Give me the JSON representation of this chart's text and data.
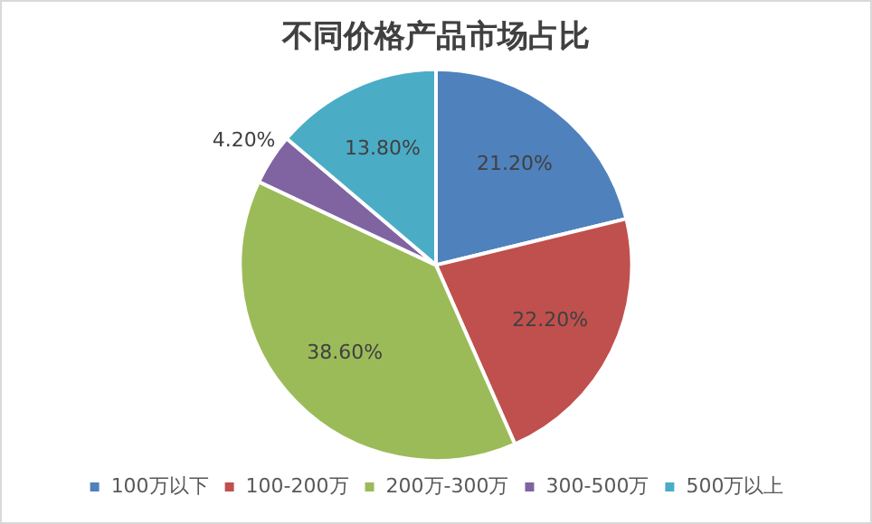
{
  "chart_data": {
    "type": "pie",
    "title": "不同价格产品市场占比",
    "categories": [
      "100万以下",
      "100-200万",
      "200万-300万",
      "300-500万",
      "500万以上"
    ],
    "values": [
      21.2,
      22.2,
      38.6,
      4.2,
      13.8
    ],
    "colors": [
      "#4f81bd",
      "#c0504d",
      "#9bbb59",
      "#8064a2",
      "#4bacc6"
    ],
    "value_labels": [
      "21.20%",
      "22.20%",
      "38.60%",
      "4.20%",
      "13.80%"
    ],
    "legend": "bottom"
  }
}
